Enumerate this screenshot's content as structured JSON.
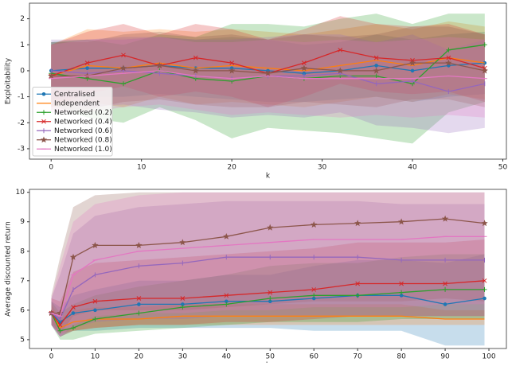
{
  "chart_data": [
    {
      "type": "line",
      "xlabel": "k",
      "ylabel": "Exploitability",
      "xlim": [
        -2.4,
        50.4
      ],
      "ylim": [
        -3.4,
        2.6
      ],
      "xticks": [
        0,
        10,
        20,
        30,
        40,
        50
      ],
      "yticks": [
        -3,
        -2,
        -1,
        0,
        1,
        2
      ],
      "legend": "lower left",
      "x": [
        0,
        4,
        8,
        12,
        16,
        20,
        24,
        28,
        32,
        36,
        40,
        44,
        48
      ],
      "series": [
        {
          "name": "Centralised",
          "color": "#1f77b4",
          "marker": "dot",
          "values": [
            0,
            0.1,
            0.1,
            0.2,
            0.1,
            0.1,
            0,
            -0.1,
            0,
            0.2,
            0,
            0.2,
            0.3
          ],
          "lower": [
            -1.1,
            -1.0,
            -1.0,
            -0.9,
            -1.0,
            -1.1,
            -1.2,
            -1.2,
            -1.1,
            -1.0,
            -1.2,
            -1.0,
            -0.9
          ],
          "upper": [
            1.1,
            1.2,
            1.2,
            1.3,
            1.2,
            1.3,
            1.2,
            1.0,
            1.1,
            1.4,
            1.2,
            1.4,
            1.5
          ]
        },
        {
          "name": "Independent",
          "color": "#ff7f0e",
          "marker": "none",
          "values": [
            -0.2,
            0.2,
            0.1,
            0.3,
            0.1,
            0.2,
            0.1,
            0,
            0.2,
            0.4,
            0.2,
            0.5,
            0.3
          ],
          "lower": [
            -1.4,
            -1.2,
            -1.4,
            -1.0,
            -1.3,
            -1.2,
            -1.3,
            -1.4,
            -1.2,
            -1.0,
            -1.2,
            -0.9,
            -1.1
          ],
          "upper": [
            1.0,
            1.6,
            1.5,
            1.6,
            1.5,
            1.6,
            1.5,
            1.4,
            1.6,
            1.8,
            1.6,
            1.9,
            1.7
          ]
        },
        {
          "name": "Networked (0.2)",
          "color": "#2ca02c",
          "marker": "plus",
          "values": [
            -0.1,
            -0.3,
            -0.5,
            0,
            -0.3,
            -0.4,
            -0.2,
            -0.3,
            -0.2,
            -0.2,
            -0.5,
            0.8,
            1.0
          ],
          "lower": [
            -1.3,
            -1.8,
            -2.0,
            -1.4,
            -1.9,
            -2.6,
            -2.2,
            -2.3,
            -2.4,
            -2.6,
            -2.8,
            -1.6,
            -1.2
          ],
          "upper": [
            1.1,
            1.2,
            1.0,
            1.4,
            1.3,
            1.8,
            1.8,
            1.7,
            2.0,
            2.2,
            1.8,
            2.2,
            2.2
          ]
        },
        {
          "name": "Networked (0.4)",
          "color": "#d62728",
          "marker": "x",
          "values": [
            -0.2,
            0.3,
            0.6,
            0.2,
            0.5,
            0.3,
            -0.1,
            0.3,
            0.8,
            0.5,
            0.4,
            0.5,
            0.1
          ],
          "lower": [
            -1.4,
            -0.9,
            -0.6,
            -1.0,
            -0.8,
            -1.0,
            -1.4,
            -1.0,
            -0.5,
            -0.8,
            -0.9,
            -0.8,
            -1.2
          ],
          "upper": [
            1.0,
            1.5,
            1.8,
            1.4,
            1.8,
            1.6,
            1.2,
            1.6,
            2.1,
            1.8,
            1.7,
            1.8,
            1.4
          ]
        },
        {
          "name": "Networked (0.6)",
          "color": "#9467bd",
          "marker": "vline",
          "values": [
            0,
            -0.1,
            0,
            -0.1,
            -0.2,
            -0.3,
            -0.2,
            -0.2,
            -0.1,
            -0.5,
            -0.4,
            -0.8,
            -0.5
          ],
          "lower": [
            -1.2,
            -1.4,
            -1.3,
            -1.5,
            -1.6,
            -1.8,
            -1.7,
            -1.8,
            -1.6,
            -2.1,
            -2.2,
            -2.4,
            -2.2
          ],
          "upper": [
            1.2,
            1.2,
            1.3,
            1.3,
            1.2,
            1.2,
            1.3,
            1.4,
            1.4,
            1.1,
            1.4,
            0.8,
            1.2
          ]
        },
        {
          "name": "Networked (0.8)",
          "color": "#8c564b",
          "marker": "star",
          "values": [
            -0.2,
            -0.2,
            0.1,
            0.2,
            0,
            0,
            -0.1,
            0.1,
            0,
            0,
            0.3,
            0.3,
            0
          ],
          "lower": [
            -1.5,
            -1.5,
            -1.2,
            -1.1,
            -1.3,
            -1.4,
            -1.4,
            -1.2,
            -1.3,
            -1.4,
            -1.1,
            -1.1,
            -1.4
          ],
          "upper": [
            1.1,
            1.1,
            1.4,
            1.5,
            1.3,
            1.4,
            1.2,
            1.4,
            1.3,
            1.4,
            1.7,
            1.7,
            1.4
          ]
        },
        {
          "name": "Networked (1.0)",
          "color": "#e377c2",
          "marker": "hline",
          "values": [
            -0.3,
            -0.2,
            -0.1,
            0,
            -0.2,
            -0.3,
            -0.2,
            -0.3,
            -0.3,
            -0.3,
            -0.3,
            -0.2,
            -0.3
          ],
          "lower": [
            -1.6,
            -1.6,
            -1.4,
            -1.3,
            -1.5,
            -1.7,
            -1.6,
            -1.7,
            -1.8,
            -1.7,
            -1.8,
            -1.7,
            -1.8
          ],
          "upper": [
            1.0,
            1.2,
            1.2,
            1.3,
            1.1,
            1.1,
            1.2,
            1.1,
            1.2,
            1.1,
            1.2,
            1.3,
            1.2
          ]
        }
      ]
    },
    {
      "type": "line",
      "xlabel": "k",
      "ylabel": "Average discounted return",
      "xlim": [
        -5,
        104
      ],
      "ylim": [
        4.7,
        10.1
      ],
      "xticks": [
        0,
        10,
        20,
        30,
        40,
        50,
        60,
        70,
        80,
        90,
        100
      ],
      "yticks": [
        5,
        6,
        7,
        8,
        9,
        10
      ],
      "x": [
        0,
        2,
        5,
        10,
        20,
        30,
        40,
        50,
        60,
        70,
        80,
        90,
        99
      ],
      "series": [
        {
          "color": "#1f77b4",
          "marker": "dot",
          "values": [
            5.9,
            5.6,
            5.9,
            6.0,
            6.2,
            6.2,
            6.3,
            6.3,
            6.4,
            6.5,
            6.5,
            6.2,
            6.4
          ],
          "lower": [
            5.5,
            5.1,
            5.3,
            5.3,
            5.4,
            5.4,
            5.4,
            5.4,
            5.3,
            5.3,
            5.3,
            4.8,
            4.8
          ],
          "upper": [
            6.3,
            6.1,
            6.5,
            6.7,
            7.0,
            7.0,
            7.2,
            7.2,
            7.5,
            7.7,
            7.7,
            7.6,
            7.9
          ]
        },
        {
          "color": "#ff7f0e",
          "marker": "none",
          "values": [
            5.9,
            5.4,
            5.6,
            5.7,
            5.7,
            5.8,
            5.8,
            5.8,
            5.8,
            5.8,
            5.8,
            5.7,
            5.7
          ],
          "lower": [
            5.6,
            5.2,
            5.3,
            5.4,
            5.5,
            5.5,
            5.5,
            5.5,
            5.5,
            5.5,
            5.5,
            5.5,
            5.5
          ],
          "upper": [
            6.2,
            5.7,
            6.0,
            6.1,
            6.1,
            6.2,
            6.2,
            6.2,
            6.2,
            6.2,
            6.2,
            6.0,
            6.0
          ]
        },
        {
          "color": "#2ca02c",
          "marker": "plus",
          "values": [
            5.9,
            5.3,
            5.4,
            5.7,
            5.9,
            6.1,
            6.2,
            6.4,
            6.5,
            6.5,
            6.6,
            6.7,
            6.7
          ],
          "lower": [
            5.5,
            5.0,
            5.0,
            5.2,
            5.3,
            5.4,
            5.5,
            5.6,
            5.6,
            5.6,
            5.7,
            5.7,
            5.7
          ],
          "upper": [
            6.3,
            5.9,
            6.2,
            6.5,
            6.8,
            7.0,
            7.2,
            7.5,
            7.6,
            7.6,
            7.8,
            7.9,
            7.9
          ]
        },
        {
          "color": "#d62728",
          "marker": "x",
          "values": [
            5.9,
            5.5,
            6.1,
            6.3,
            6.4,
            6.4,
            6.5,
            6.6,
            6.7,
            6.9,
            6.9,
            6.9,
            7.0
          ],
          "lower": [
            5.5,
            5.1,
            5.3,
            5.4,
            5.5,
            5.5,
            5.6,
            5.6,
            5.7,
            5.8,
            5.8,
            5.8,
            5.8
          ],
          "upper": [
            6.4,
            6.3,
            7.3,
            7.6,
            7.7,
            7.8,
            7.9,
            8.0,
            8.1,
            8.3,
            8.3,
            8.3,
            8.4
          ]
        },
        {
          "color": "#9467bd",
          "marker": "vline",
          "values": [
            5.9,
            5.7,
            6.7,
            7.2,
            7.5,
            7.6,
            7.8,
            7.8,
            7.8,
            7.8,
            7.7,
            7.7,
            7.7
          ],
          "lower": [
            5.5,
            5.1,
            5.4,
            5.6,
            5.7,
            5.7,
            5.8,
            5.8,
            5.8,
            5.8,
            5.8,
            5.8,
            5.8
          ],
          "upper": [
            6.4,
            7.2,
            8.6,
            9.2,
            9.5,
            9.6,
            9.7,
            9.7,
            9.7,
            9.7,
            9.6,
            9.6,
            9.6
          ]
        },
        {
          "color": "#8c564b",
          "marker": "star",
          "values": [
            5.9,
            5.9,
            7.8,
            8.2,
            8.2,
            8.3,
            8.5,
            8.8,
            8.9,
            8.95,
            9.0,
            9.1,
            8.95
          ],
          "lower": [
            5.5,
            5.2,
            5.8,
            6.0,
            6.0,
            6.0,
            6.1,
            6.2,
            6.3,
            6.3,
            6.3,
            6.4,
            6.3
          ],
          "upper": [
            6.5,
            7.8,
            9.5,
            9.9,
            10.0,
            10.0,
            10.0,
            10.0,
            10.0,
            10.0,
            10.0,
            10.0,
            10.0
          ]
        },
        {
          "color": "#e377c2",
          "marker": "hline",
          "values": [
            5.9,
            5.8,
            7.2,
            7.7,
            8.0,
            8.1,
            8.2,
            8.3,
            8.4,
            8.4,
            8.4,
            8.5,
            8.5
          ],
          "lower": [
            5.5,
            5.1,
            5.5,
            5.8,
            5.9,
            5.9,
            6.0,
            6.0,
            6.1,
            6.1,
            6.1,
            6.2,
            6.2
          ],
          "upper": [
            6.4,
            7.5,
            9.0,
            9.6,
            9.9,
            10.0,
            10.0,
            10.0,
            10.0,
            10.0,
            10.0,
            10.0,
            10.0
          ]
        }
      ]
    }
  ]
}
